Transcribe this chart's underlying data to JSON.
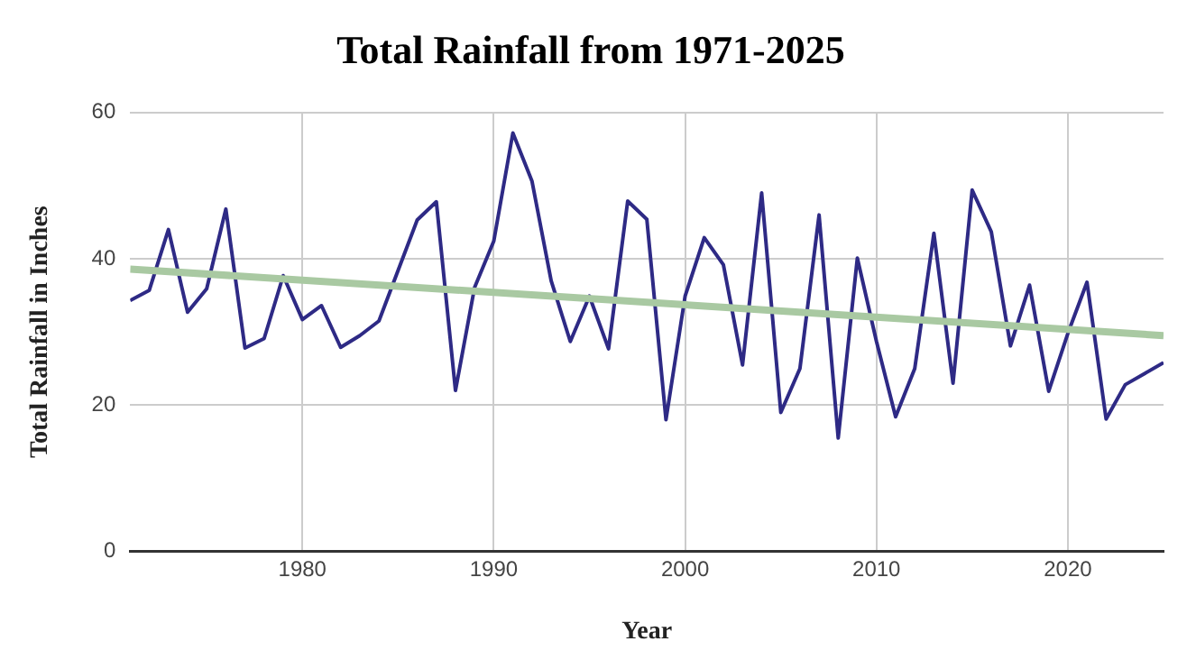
{
  "chart_data": {
    "type": "line",
    "title": "Total Rainfall from 1971-2025",
    "xlabel": "Year",
    "ylabel": "Total Rainfall in Inches",
    "xlim": [
      1971,
      2025
    ],
    "xticks": [
      1980,
      1990,
      2000,
      2010,
      2020
    ],
    "ylim": [
      0,
      60
    ],
    "yticks": [
      0,
      20,
      40,
      60
    ],
    "grid": true,
    "x": [
      1971,
      1972,
      1973,
      1974,
      1975,
      1976,
      1977,
      1978,
      1979,
      1980,
      1981,
      1982,
      1983,
      1984,
      1985,
      1986,
      1987,
      1988,
      1989,
      1990,
      1991,
      1992,
      1993,
      1994,
      1995,
      1996,
      1997,
      1998,
      1999,
      2000,
      2001,
      2002,
      2003,
      2004,
      2005,
      2006,
      2007,
      2008,
      2009,
      2010,
      2011,
      2012,
      2013,
      2014,
      2015,
      2016,
      2017,
      2018,
      2019,
      2020,
      2021,
      2022,
      2023,
      2024,
      2025
    ],
    "series": [
      {
        "color": "#2e2a85",
        "values": [
          34.3,
          35.7,
          44,
          32.7,
          35.9,
          46.8,
          27.8,
          29.1,
          37.7,
          31.7,
          33.6,
          27.9,
          29.5,
          31.5,
          38.4,
          45.3,
          47.8,
          22,
          36.1,
          42.4,
          57.2,
          50.6,
          37,
          28.7,
          34.9,
          27.7,
          47.9,
          45.4,
          18,
          34.9,
          42.9,
          39.2,
          25.5,
          49,
          19,
          25,
          46,
          15.5,
          40.1,
          28.7,
          18.4,
          25,
          43.5,
          23,
          49.4,
          43.7,
          28.1,
          36.4,
          21.9,
          29.8,
          36.8,
          18.1,
          22.8,
          24.3,
          25.8
        ]
      },
      {
        "color": "#a9c9a2",
        "x": [
          1971,
          2025
        ],
        "values": [
          38.6,
          29.5
        ]
      }
    ]
  }
}
